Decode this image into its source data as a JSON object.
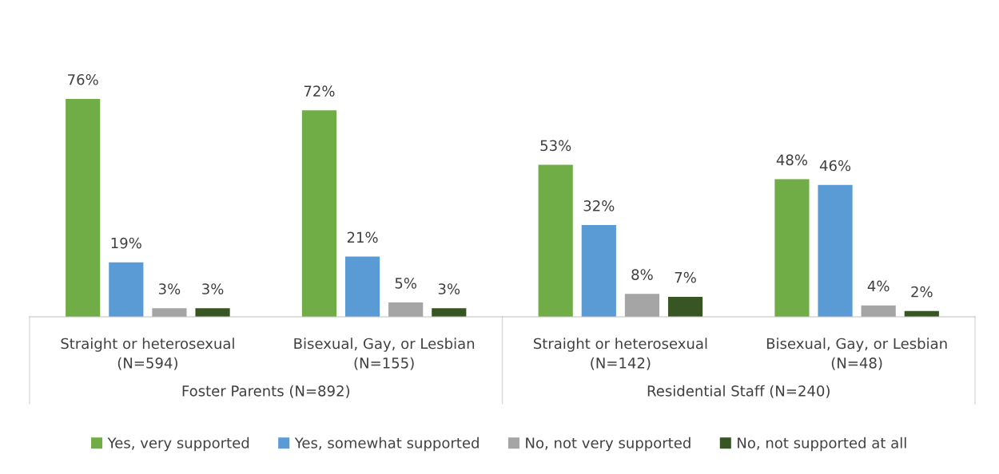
{
  "chart_data": {
    "type": "bar",
    "categories": [
      "Straight or heterosexual\n(N=594)",
      "Bisexual, Gay, or Lesbian\n(N=155)",
      "Straight or heterosexual\n(N=142)",
      "Bisexual, Gay, or Lesbian\n(N=48)"
    ],
    "series": [
      {
        "name": "Yes, very supported",
        "color": "#70ad47",
        "values": [
          76,
          72,
          53,
          48
        ],
        "value_labels": [
          "76%",
          "72%",
          "53%",
          "48%"
        ]
      },
      {
        "name": "Yes, somewhat supported",
        "color": "#5b9bd5",
        "values": [
          19,
          21,
          32,
          46
        ],
        "value_labels": [
          "19%",
          "21%",
          "32%",
          "46%"
        ]
      },
      {
        "name": "No, not very supported",
        "color": "#a5a5a5",
        "values": [
          3,
          5,
          8,
          4
        ],
        "value_labels": [
          "3%",
          "5%",
          "8%",
          "4%"
        ]
      },
      {
        "name": "No, not supported at all",
        "color": "#375623",
        "values": [
          3,
          3,
          7,
          2
        ],
        "value_labels": [
          "3%",
          "3%",
          "7%",
          "2%"
        ]
      }
    ],
    "annotations": [
      "Foster Parents (N=892)",
      "Residential Staff (N=240)"
    ],
    "legend": "bottom"
  }
}
